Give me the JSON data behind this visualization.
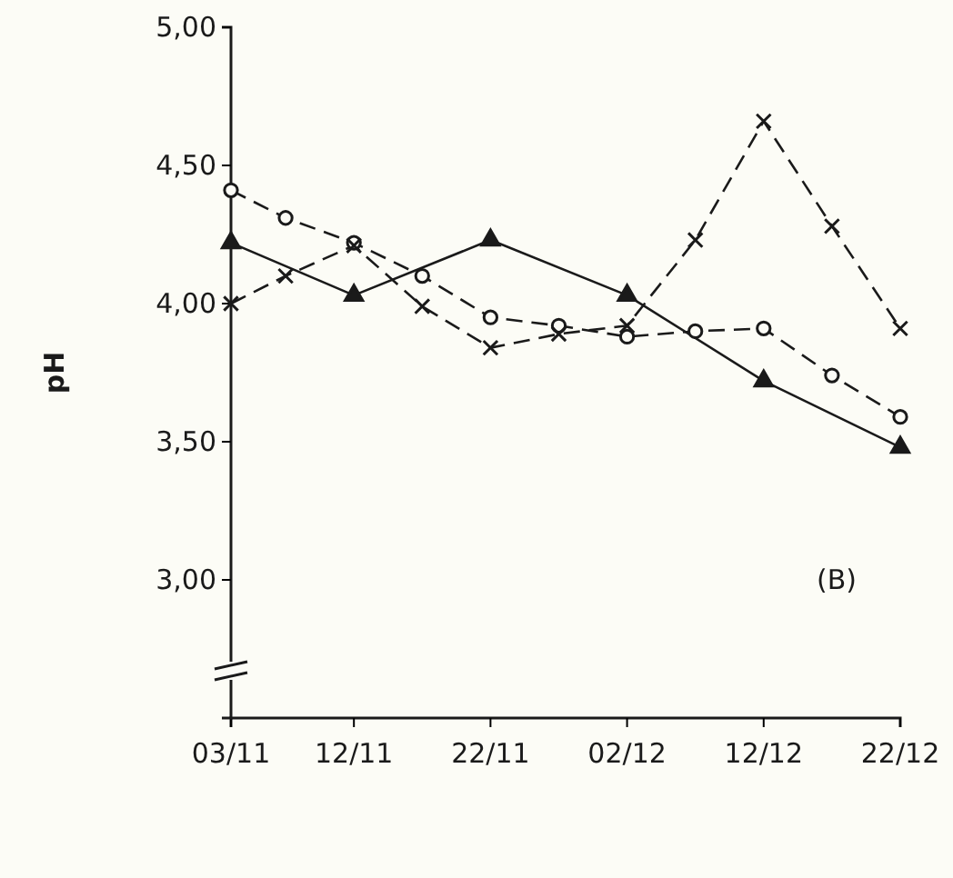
{
  "chart_data": {
    "type": "line",
    "ylabel": "pH",
    "annotations": [
      "(B)"
    ],
    "xlim": [
      "--11-03",
      "--12-22"
    ],
    "xticks": [
      {
        "value": "--11-03",
        "label": "03/11"
      },
      {
        "value": "--11-12",
        "label": "12/11"
      },
      {
        "value": "--11-22",
        "label": "22/11"
      },
      {
        "value": "--12-02",
        "label": "02/12"
      },
      {
        "value": "--12-12",
        "label": "12/12"
      },
      {
        "value": "--12-22",
        "label": "22/12"
      }
    ],
    "ylim": [
      2.5,
      5.0
    ],
    "yticks": [
      {
        "value": 3,
        "label": "3,00"
      },
      {
        "value": 3.5,
        "label": "3,50"
      },
      {
        "value": 4,
        "label": "4,00"
      },
      {
        "value": 4.5,
        "label": "4,50"
      },
      {
        "value": 5,
        "label": "5,00"
      }
    ],
    "grid": false,
    "series": [
      {
        "color": "#1a1a1a",
        "marker": "circle",
        "line_style": "dashed",
        "x": [
          "--11-03",
          "--11-07",
          "--11-12",
          "--11-17",
          "--11-22",
          "--11-27",
          "--12-02",
          "--12-07",
          "--12-12",
          "--12-17",
          "--12-22"
        ],
        "values": [
          4.41,
          4.31,
          4.22,
          4.1,
          3.95,
          3.92,
          3.88,
          3.9,
          3.91,
          3.74,
          3.59
        ]
      },
      {
        "color": "#1a1a1a",
        "marker": "triangle",
        "line_style": "solid",
        "x": [
          "--11-03",
          "--11-12",
          "--11-22",
          "--12-02",
          "--12-12",
          "--12-22"
        ],
        "values": [
          4.22,
          4.03,
          4.23,
          4.03,
          3.72,
          3.48
        ]
      },
      {
        "color": "#1a1a1a",
        "marker": "cross",
        "line_style": "dashed",
        "x": [
          "--11-03",
          "--11-07",
          "--11-12",
          "--11-17",
          "--11-22",
          "--11-27",
          "--12-02",
          "--12-07",
          "--12-12",
          "--12-17",
          "--12-22"
        ],
        "values": [
          4.0,
          4.1,
          4.21,
          3.99,
          3.84,
          3.89,
          3.92,
          4.23,
          4.66,
          4.28,
          3.91
        ]
      }
    ]
  }
}
